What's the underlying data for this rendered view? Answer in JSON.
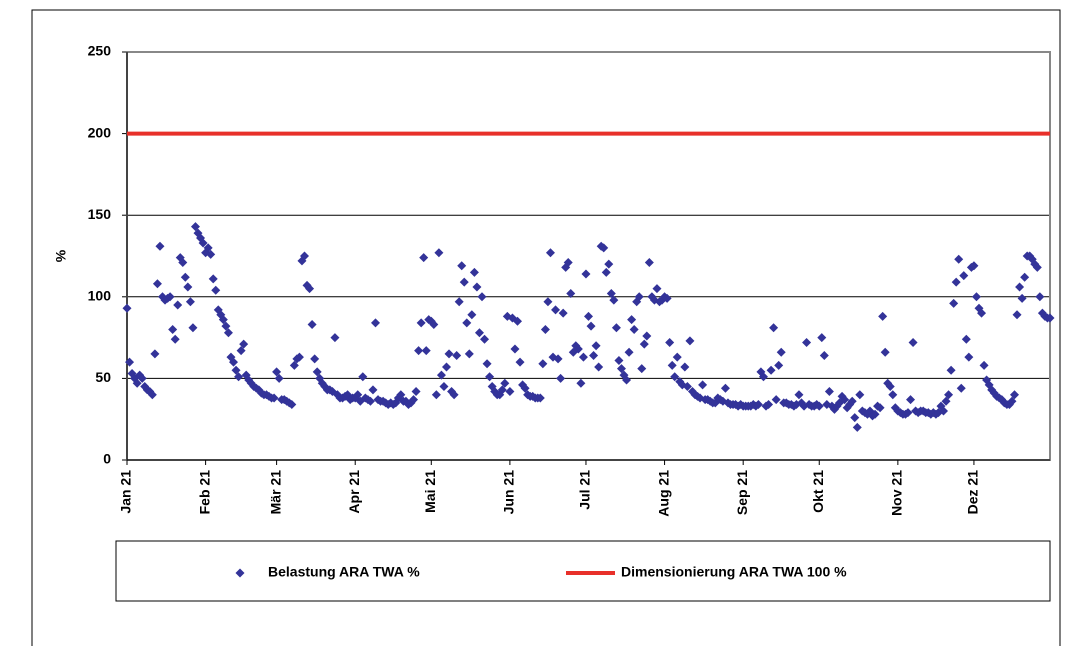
{
  "chart_data": {
    "type": "scatter",
    "ylabel": "%",
    "ylim": [
      0,
      250
    ],
    "yticks": [
      0,
      50,
      100,
      150,
      200,
      250
    ],
    "grid": true,
    "categories": [
      "Jan 21",
      null,
      null,
      null,
      null,
      null,
      null,
      null,
      null,
      null,
      null,
      null,
      null,
      null,
      null,
      null,
      null,
      null,
      null,
      null,
      null,
      null,
      null,
      null,
      null,
      null,
      null,
      null,
      null,
      null,
      null,
      "Feb 21",
      null,
      null,
      null,
      null,
      null,
      null,
      null,
      null,
      null,
      null,
      null,
      null,
      null,
      null,
      null,
      null,
      null,
      null,
      null,
      null,
      null,
      null,
      null,
      null,
      null,
      null,
      null,
      "Mär 21",
      null,
      null,
      null,
      null,
      null,
      null,
      null,
      null,
      null,
      null,
      null,
      null,
      null,
      null,
      null,
      null,
      null,
      null,
      null,
      null,
      null,
      null,
      null,
      null,
      null,
      null,
      null,
      null,
      null,
      null,
      "Apr 21",
      null,
      null,
      null,
      null,
      null,
      null,
      null,
      null,
      null,
      null,
      null,
      null,
      null,
      null,
      null,
      null,
      null,
      null,
      null,
      null,
      null,
      null,
      null,
      null,
      null,
      null,
      null,
      null,
      null,
      "Mai 21",
      null,
      null,
      null,
      null,
      null,
      null,
      null,
      null,
      null,
      null,
      null,
      null,
      null,
      null,
      null,
      null,
      null,
      null,
      null,
      null,
      null,
      null,
      null,
      null,
      null,
      null,
      null,
      null,
      null,
      null,
      "Jun 21",
      null,
      null,
      null,
      null,
      null,
      null,
      null,
      null,
      null,
      null,
      null,
      null,
      null,
      null,
      null,
      null,
      null,
      null,
      null,
      null,
      null,
      null,
      null,
      null,
      null,
      null,
      null,
      null,
      null,
      "Jul 21",
      null,
      null,
      null,
      null,
      null,
      null,
      null,
      null,
      null,
      null,
      null,
      null,
      null,
      null,
      null,
      null,
      null,
      null,
      null,
      null,
      null,
      null,
      null,
      null,
      null,
      null,
      null,
      null,
      null,
      null,
      "Aug 21",
      null,
      null,
      null,
      null,
      null,
      null,
      null,
      null,
      null,
      null,
      null,
      null,
      null,
      null,
      null,
      null,
      null,
      null,
      null,
      null,
      null,
      null,
      null,
      null,
      null,
      null,
      null,
      null,
      null,
      null,
      "Sep 21",
      null,
      null,
      null,
      null,
      null,
      null,
      null,
      null,
      null,
      null,
      null,
      null,
      null,
      null,
      null,
      null,
      null,
      null,
      null,
      null,
      null,
      null,
      null,
      null,
      null,
      null,
      null,
      null,
      null,
      "Okt 21",
      null,
      null,
      null,
      null,
      null,
      null,
      null,
      null,
      null,
      null,
      null,
      null,
      null,
      null,
      null,
      null,
      null,
      null,
      null,
      null,
      null,
      null,
      null,
      null,
      null,
      null,
      null,
      null,
      null,
      null,
      "Nov 21",
      null,
      null,
      null,
      null,
      null,
      null,
      null,
      null,
      null,
      null,
      null,
      null,
      null,
      null,
      null,
      null,
      null,
      null,
      null,
      null,
      null,
      null,
      null,
      null,
      null,
      null,
      null,
      null,
      null,
      "Dez 21",
      null,
      null,
      null,
      null,
      null,
      null,
      null,
      null,
      null,
      null,
      null,
      null,
      null,
      null,
      null,
      null,
      null,
      null,
      null,
      null,
      null,
      null,
      null,
      null,
      null,
      null,
      null,
      null,
      null,
      null
    ],
    "series": [
      {
        "name": "Belastung ARA TWA %",
        "color": "#333399",
        "values": [
          93,
          60,
          53,
          50,
          47,
          52,
          50,
          45,
          43,
          42,
          40,
          65,
          108,
          131,
          100,
          98,
          99,
          100,
          80,
          74,
          95,
          124,
          121,
          112,
          106,
          97,
          81,
          143,
          139,
          136,
          133,
          127,
          130,
          126,
          111,
          104,
          92,
          89,
          86,
          82,
          78,
          63,
          60,
          55,
          51,
          67,
          71,
          52,
          49,
          47,
          45,
          44,
          43,
          41,
          40,
          40,
          39,
          38,
          38,
          54,
          50,
          37,
          37,
          36,
          35,
          34,
          58,
          62,
          63,
          122,
          125,
          107,
          105,
          83,
          62,
          54,
          50,
          47,
          45,
          43,
          43,
          42,
          75,
          40,
          38,
          38,
          39,
          40,
          37,
          38,
          38,
          40,
          36,
          51,
          38,
          37,
          36,
          43,
          84,
          37,
          36,
          36,
          35,
          34,
          35,
          34,
          35,
          38,
          40,
          36,
          36,
          34,
          35,
          37,
          42,
          67,
          84,
          124,
          67,
          86,
          85,
          83,
          40,
          127,
          52,
          45,
          57,
          65,
          42,
          40,
          64,
          97,
          119,
          109,
          84,
          65,
          89,
          115,
          106,
          78,
          100,
          74,
          59,
          51,
          45,
          42,
          40,
          40,
          43,
          47,
          88,
          42,
          87,
          68,
          85,
          60,
          46,
          44,
          40,
          39,
          39,
          38,
          38,
          38,
          59,
          80,
          97,
          127,
          63,
          92,
          62,
          50,
          90,
          118,
          121,
          102,
          66,
          70,
          68,
          47,
          63,
          114,
          88,
          82,
          64,
          70,
          57,
          131,
          130,
          115,
          120,
          102,
          98,
          81,
          61,
          56,
          52,
          49,
          66,
          86,
          80,
          97,
          100,
          56,
          71,
          76,
          121,
          100,
          98,
          105,
          97,
          98,
          100,
          99,
          72,
          58,
          51,
          63,
          48,
          46,
          57,
          45,
          73,
          42,
          40,
          39,
          38,
          46,
          37,
          37,
          36,
          35,
          35,
          38,
          37,
          36,
          44,
          35,
          34,
          34,
          34,
          33,
          34,
          33,
          33,
          33,
          33,
          34,
          33,
          34,
          54,
          51,
          33,
          34,
          55,
          81,
          37,
          58,
          66,
          35,
          35,
          34,
          34,
          33,
          34,
          40,
          35,
          33,
          72,
          34,
          33,
          33,
          34,
          33,
          75,
          64,
          34,
          42,
          33,
          31,
          33,
          35,
          39,
          37,
          32,
          34,
          36,
          26,
          20,
          40,
          30,
          29,
          28,
          30,
          27,
          28,
          33,
          32,
          88,
          66,
          47,
          45,
          40,
          32,
          30,
          29,
          28,
          28,
          29,
          37,
          72,
          30,
          29,
          30,
          30,
          29,
          29,
          28,
          29,
          28,
          29,
          33,
          30,
          36,
          40,
          55,
          96,
          109,
          123,
          44,
          113,
          74,
          63,
          118,
          119,
          100,
          93,
          90,
          58,
          49,
          46,
          43,
          41,
          39,
          38,
          37,
          35,
          34,
          34,
          36,
          40,
          89,
          106,
          99,
          112,
          125,
          125,
          123,
          120,
          118,
          100,
          90,
          88,
          87,
          87
        ]
      }
    ],
    "hlines": [
      {
        "name": "Dimensionierung ARA TWA 100 %",
        "color": "#e8302a",
        "value": 200
      }
    ]
  }
}
